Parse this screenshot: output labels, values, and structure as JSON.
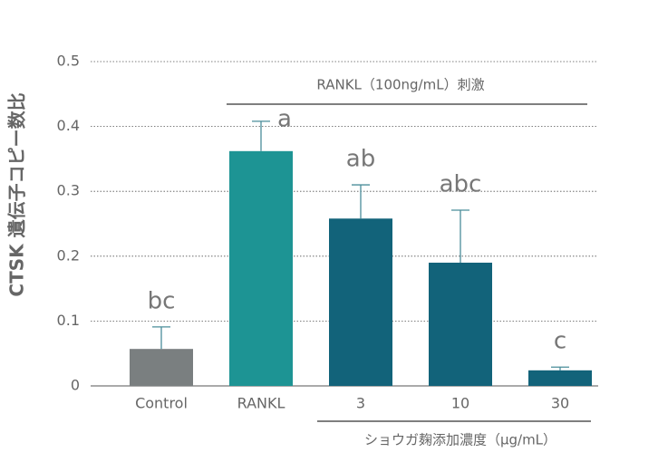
{
  "chart_data": {
    "type": "bar",
    "y_label": "CTSK 遺伝子コピー数比",
    "categories": [
      "Control",
      "RANKL",
      "3",
      "10",
      "30"
    ],
    "values": [
      0.057,
      0.362,
      0.258,
      0.19,
      0.024
    ],
    "errors": [
      0.034,
      0.046,
      0.052,
      0.081,
      0.005
    ],
    "letters": [
      "bc",
      "a",
      "ab",
      "abc",
      "c"
    ],
    "colors": [
      "#7a7f80",
      "#1d9494",
      "#12637a",
      "#12637a",
      "#12637a"
    ],
    "error_color": "#4a8d9a",
    "ylim": [
      0,
      0.5
    ],
    "yticks": [
      0,
      0.1,
      0.2,
      0.3,
      0.4,
      0.5
    ],
    "grid": true,
    "group_labels": [
      "RANKL（100ng/mL）刺激",
      "ショウガ麹添加濃度（μg/mL）"
    ]
  }
}
